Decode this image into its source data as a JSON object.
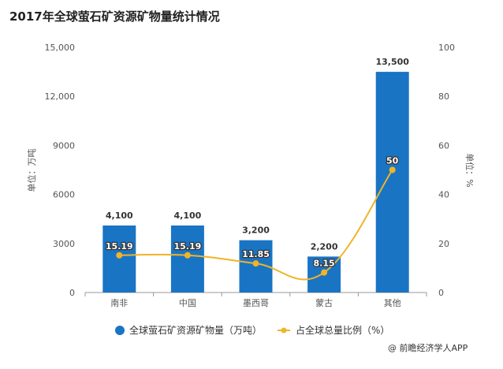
{
  "chart_data": {
    "type": "bar",
    "title": "2017年全球萤石矿资源矿物量统计情况",
    "categories": [
      "南非",
      "中国",
      "墨西哥",
      "蒙古",
      "其他"
    ],
    "series": [
      {
        "name": "全球萤石矿资源矿物量（万吨）",
        "type": "bar",
        "axis": "left",
        "color": "#1a74c4",
        "values": [
          4100,
          4100,
          3200,
          2200,
          13500
        ],
        "labels": [
          "4,100",
          "4,100",
          "3,200",
          "2,200",
          "13,500"
        ]
      },
      {
        "name": "占全球总量比例（%）",
        "type": "line",
        "axis": "right",
        "color": "#f0b428",
        "values": [
          15.19,
          15.19,
          11.85,
          8.15,
          50
        ],
        "labels": [
          "15.19",
          "15.19",
          "11.85",
          "8.15",
          "50"
        ]
      }
    ],
    "ylabel": "单位：万吨",
    "y2label": "单位：%",
    "ylim": [
      0,
      15000
    ],
    "y2lim": [
      0,
      100
    ],
    "yticks": [
      "0",
      "3000",
      "6000",
      "9000",
      "12,000",
      "15,000"
    ],
    "yticks_values": [
      0,
      3000,
      6000,
      9000,
      12000,
      15000
    ],
    "y2ticks": [
      "0",
      "20",
      "40",
      "60",
      "80",
      "100"
    ],
    "y2ticks_values": [
      0,
      20,
      40,
      60,
      80,
      100
    ],
    "legend_position": "bottom",
    "grid": false
  },
  "source": "@ 前瞻经济学人APP"
}
